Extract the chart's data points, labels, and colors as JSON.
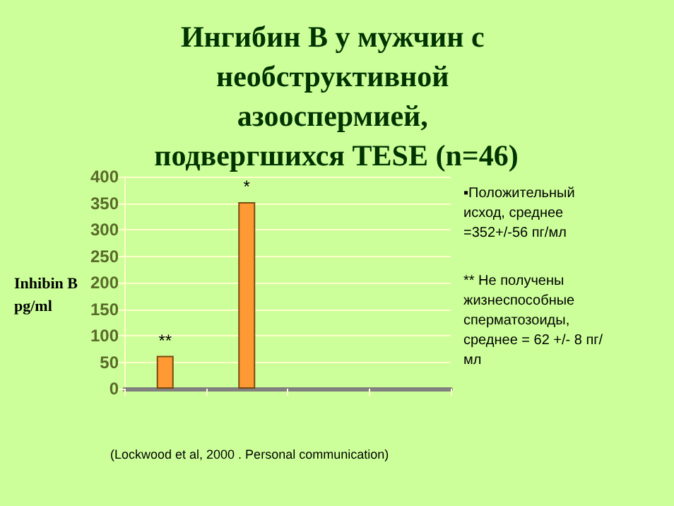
{
  "chart_data": {
    "type": "bar",
    "title": "Ингибин B у мужчин с необструктивной азооспермией, подвергшихся TESE (n=46)",
    "ylabel": "Inhibin B pg/ml",
    "categories": [
      null,
      null,
      null,
      null
    ],
    "values": [
      62,
      352,
      null,
      null
    ],
    "value_labels": [
      "**",
      "*",
      null,
      null
    ],
    "color": "#ff9933",
    "ylim": [
      0,
      400
    ],
    "yticks": [
      0,
      50,
      100,
      150,
      200,
      250,
      300,
      350,
      400
    ],
    "grid": "y",
    "annotations": [
      "▪Положительный исход, среднее =352+/-56 пг/мл",
      "** Не получены жизнеспособные сперматозоиды, среднее = 62 +/- 8 пг/мл",
      "(Lockwood et al, 2000 . Personal communication)"
    ]
  }
}
